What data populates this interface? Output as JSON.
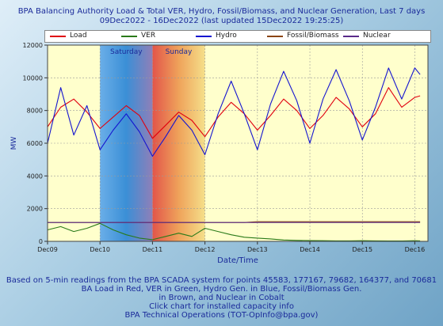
{
  "title": "BPA Balancing Authority Load & Total VER, Hydro, Fossil/Biomass, and Nuclear Generation, Last 7 days",
  "subtitle": "09Dec2022 - 16Dec2022 (last updated 15Dec2022 19:25:25)",
  "footer": [
    "Based on 5-min readings from the BPA SCADA system for points 45583, 177167, 79682, 164377, and 70681",
    "BA Load in Red, VER in Green, Hydro Gen. in Blue, Fossil/Biomass Gen.",
    "in Brown, and Nuclear in Cobalt",
    "Click chart for installed capacity info",
    "BPA Technical Operations (TOT-OpInfo@bpa.gov)"
  ],
  "chart_data": {
    "type": "line",
    "title": "BPA Balancing Authority Load & Total VER, Hydro, Fossil/Biomass, and Nuclear Generation, Last 7 days",
    "xlabel": "Date/Time",
    "ylabel": "MW",
    "xlim": [
      0,
      7.25
    ],
    "ylim": [
      0,
      12000
    ],
    "x_tick_labels": [
      "Dec09",
      "Dec10",
      "Dec11",
      "Dec12",
      "Dec13",
      "Dec14",
      "Dec15",
      "Dec16"
    ],
    "x_tick_positions": [
      0,
      1,
      2,
      3,
      4,
      5,
      6,
      7
    ],
    "y_ticks": [
      0,
      2000,
      4000,
      6000,
      8000,
      10000,
      12000
    ],
    "grid": true,
    "legend_position": "top",
    "weekend_bands": [
      {
        "label": "Saturday",
        "x_start": 1,
        "x_end": 2,
        "color": "#3b8fd6"
      },
      {
        "label": "Sunday",
        "x_start": 2,
        "x_end": 3,
        "color": "#e2554a"
      }
    ],
    "x": [
      0,
      0.25,
      0.5,
      0.75,
      1,
      1.25,
      1.5,
      1.75,
      2,
      2.25,
      2.5,
      2.75,
      3,
      3.25,
      3.5,
      3.75,
      4,
      4.25,
      4.5,
      4.75,
      5,
      5.25,
      5.5,
      5.75,
      6,
      6.25,
      6.5,
      6.75,
      7,
      7.1
    ],
    "series": [
      {
        "name": "Load",
        "color": "#e0000f",
        "values": [
          7000,
          8200,
          8700,
          7900,
          6900,
          7600,
          8300,
          7700,
          6300,
          7100,
          7900,
          7400,
          6400,
          7600,
          8500,
          7800,
          6800,
          7700,
          8700,
          8000,
          6900,
          7700,
          8800,
          8100,
          7000,
          7800,
          9400,
          8200,
          8800,
          8900
        ]
      },
      {
        "name": "VER",
        "color": "#2a7a1a",
        "values": [
          700,
          900,
          600,
          800,
          1100,
          700,
          400,
          200,
          100,
          300,
          500,
          300,
          800,
          600,
          400,
          250,
          200,
          150,
          80,
          60,
          50,
          40,
          30,
          30,
          40,
          30,
          20,
          20,
          40,
          30
        ]
      },
      {
        "name": "Hydro",
        "color": "#1515d0",
        "values": [
          6000,
          9400,
          6500,
          8300,
          5600,
          6800,
          7800,
          6700,
          5200,
          6400,
          7700,
          6800,
          5300,
          7800,
          9800,
          7800,
          5600,
          8400,
          10400,
          8600,
          6000,
          8700,
          10500,
          8600,
          6200,
          8200,
          10600,
          8700,
          10600,
          10200
        ]
      },
      {
        "name": "Fossil/Biomass",
        "color": "#8b4513",
        "values": [
          1150,
          1150,
          1150,
          1150,
          1150,
          1150,
          1150,
          1150,
          1150,
          1150,
          1150,
          1150,
          1150,
          1150,
          1150,
          1150,
          1200,
          1200,
          1200,
          1200,
          1200,
          1200,
          1200,
          1200,
          1200,
          1200,
          1200,
          1200,
          1200,
          1200
        ]
      },
      {
        "name": "Nuclear",
        "color": "#5a2a8a",
        "values": [
          1150,
          1150,
          1150,
          1150,
          1150,
          1150,
          1150,
          1150,
          1150,
          1150,
          1150,
          1150,
          1150,
          1150,
          1150,
          1150,
          1150,
          1150,
          1150,
          1150,
          1150,
          1150,
          1150,
          1150,
          1150,
          1150,
          1150,
          1150,
          1150,
          1150
        ]
      }
    ]
  }
}
